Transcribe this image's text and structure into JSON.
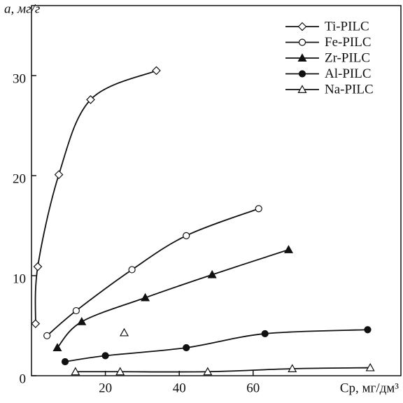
{
  "chart_data": {
    "type": "line",
    "y_label": "a, мг/г",
    "x_label": "Cр, мг/дм³",
    "xlim": [
      0,
      100
    ],
    "xticks": [
      20,
      40,
      60
    ],
    "ylim": [
      0,
      37
    ],
    "yticks": [
      0,
      10,
      20,
      30
    ],
    "legend": "upper right",
    "series": [
      {
        "name": "Ti-PILC",
        "color": "#111",
        "marker": "diamond-open",
        "line": true,
        "legend": true,
        "x": [
          1.1,
          1.7,
          7.4,
          16,
          33.8
        ],
        "values": [
          5.2,
          10.9,
          20.1,
          27.6,
          30.5
        ]
      },
      {
        "name": "Fe-PILC",
        "color": "#111",
        "marker": "circle-open",
        "line": true,
        "legend": true,
        "x": [
          4.2,
          12.1,
          27.2,
          41.9,
          61.5
        ],
        "values": [
          4.0,
          6.5,
          10.6,
          14.0,
          16.7
        ]
      },
      {
        "name": "Zr-PILC",
        "color": "#111",
        "marker": "triangle-filled",
        "line": true,
        "legend": true,
        "x": [
          7,
          13.6,
          30.8,
          48.9,
          69.6
        ],
        "values": [
          2.8,
          5.4,
          7.8,
          10.1,
          12.6
        ]
      },
      {
        "name": "Al-PILC",
        "color": "#111",
        "marker": "circle-filled",
        "line": true,
        "legend": true,
        "x": [
          9.1,
          20,
          41.9,
          63.2,
          91
        ],
        "values": [
          1.4,
          2.0,
          2.8,
          4.2,
          4.6
        ]
      },
      {
        "name": "Na-PILC",
        "color": "#111",
        "marker": "triangle-open",
        "line": true,
        "legend": true,
        "x": [
          11.9,
          24,
          47.7,
          70.6,
          91.7
        ],
        "values": [
          0.4,
          0.4,
          0.4,
          0.7,
          0.8
        ]
      },
      {
        "name": "Na-PILC",
        "color": "#111",
        "marker": "triangle-open",
        "line": false,
        "legend": false,
        "x": [
          25.1
        ],
        "values": [
          4.3
        ]
      }
    ]
  }
}
